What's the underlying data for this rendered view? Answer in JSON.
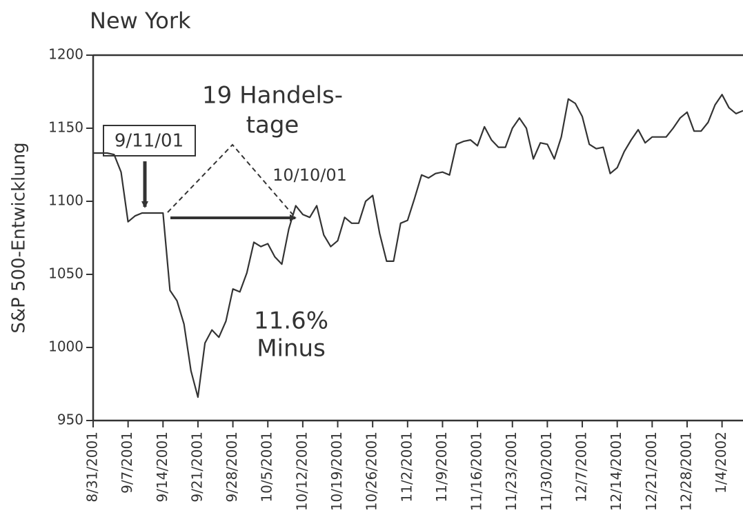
{
  "chart_data": {
    "type": "line",
    "title": "New York",
    "y_label": "S&P 500-Entwicklung",
    "categories": [
      "8/31/2001",
      null,
      null,
      null,
      null,
      "9/7/2001",
      null,
      null,
      null,
      null,
      "9/14/2001",
      null,
      null,
      null,
      null,
      "9/21/2001",
      null,
      null,
      null,
      null,
      "9/28/2001",
      null,
      null,
      null,
      null,
      "10/5/2001",
      null,
      null,
      null,
      null,
      "10/12/2001",
      null,
      null,
      null,
      null,
      "10/19/2001",
      null,
      null,
      null,
      null,
      "10/26/2001",
      null,
      null,
      null,
      null,
      "11/2/2001",
      null,
      null,
      null,
      null,
      "11/9/2001",
      null,
      null,
      null,
      null,
      "11/16/2001",
      null,
      null,
      null,
      null,
      "11/23/2001",
      null,
      null,
      null,
      null,
      "11/30/2001",
      null,
      null,
      null,
      null,
      "12/7/2001",
      null,
      null,
      null,
      null,
      "12/14/2001",
      null,
      null,
      null,
      null,
      "12/21/2001",
      null,
      null,
      null,
      null,
      "12/28/2001",
      null,
      null,
      null,
      null,
      "1/4/2002",
      null,
      null,
      null
    ],
    "values": [
      1133,
      1133,
      1133,
      1132,
      1120,
      1086,
      1090,
      1092,
      1092,
      1092,
      1092,
      1039,
      1032,
      1016,
      984,
      966,
      1003,
      1012,
      1007,
      1018,
      1040,
      1038,
      1051,
      1072,
      1069,
      1071,
      1062,
      1057,
      1081,
      1097,
      1091,
      1089,
      1097,
      1077,
      1069,
      1073,
      1089,
      1085,
      1085,
      1100,
      1104,
      1078,
      1059,
      1059,
      1085,
      1087,
      1102,
      1118,
      1116,
      1119,
      1120,
      1118,
      1139,
      1141,
      1142,
      1138,
      1151,
      1142,
      1137,
      1137,
      1150,
      1157,
      1150,
      1129,
      1140,
      1139,
      1129,
      1144,
      1170,
      1167,
      1158,
      1139,
      1136,
      1137,
      1119,
      1123,
      1134,
      1142,
      1149,
      1140,
      1144,
      1144,
      1144,
      1150,
      1157,
      1161,
      1148,
      1148,
      1154,
      1166,
      1173,
      1164,
      1160,
      1162
    ],
    "color": "#333333",
    "ylim": [
      950,
      1200
    ],
    "yticks": [
      950,
      1000,
      1050,
      1100,
      1150,
      1200
    ],
    "grid": false,
    "annotations": [
      "9/11/01",
      "19 Handels-",
      "tage",
      "10/10/01",
      "11.6%",
      "Minus"
    ]
  }
}
